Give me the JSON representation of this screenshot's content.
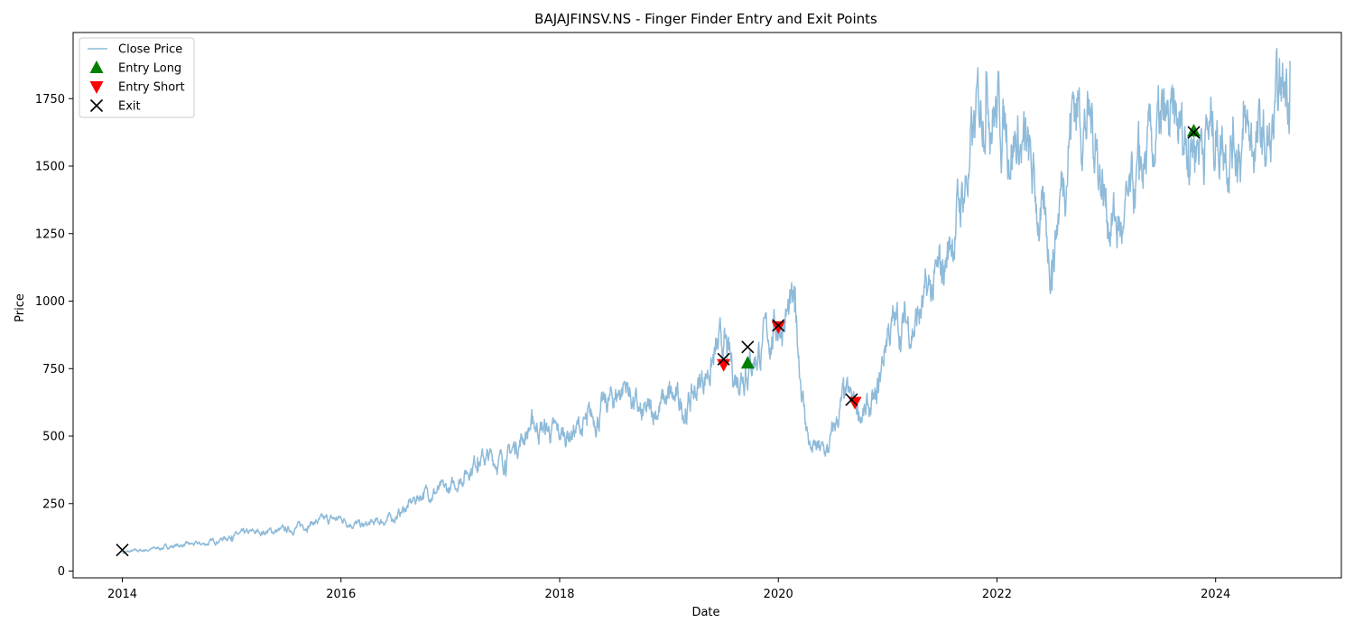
{
  "chart_data": {
    "type": "line",
    "title": "BAJAJFINSV.NS - Finger Finder Entry and Exit Points",
    "xlabel": "Date",
    "ylabel": "Price",
    "xlim": [
      2013.55,
      2025.15
    ],
    "ylim": [
      -25,
      1995
    ],
    "x_ticks": [
      2014,
      2016,
      2018,
      2020,
      2022,
      2024
    ],
    "x_tick_labels": [
      "2014",
      "2016",
      "2018",
      "2020",
      "2022",
      "2024"
    ],
    "y_ticks": [
      0,
      250,
      500,
      750,
      1000,
      1250,
      1500,
      1750
    ],
    "y_tick_labels": [
      "0",
      "250",
      "500",
      "750",
      "1000",
      "1250",
      "1500",
      "1750"
    ],
    "grid": false,
    "legend_position": "top-left",
    "legend": [
      {
        "label": "Close Price",
        "symbol": "line",
        "color": "#1f77b4"
      },
      {
        "label": "Entry Long",
        "symbol": "triangle-up",
        "color": "#008000"
      },
      {
        "label": "Entry Short",
        "symbol": "triangle-down",
        "color": "#ff0000"
      },
      {
        "label": "Exit",
        "symbol": "x",
        "color": "#000000"
      }
    ],
    "series": [
      {
        "name": "Close Price",
        "color": "#1f77b4",
        "opacity": 0.5,
        "points": [
          [
            2014.0,
            68
          ],
          [
            2014.25,
            80
          ],
          [
            2014.5,
            95
          ],
          [
            2014.75,
            100
          ],
          [
            2015.0,
            130
          ],
          [
            2015.25,
            145
          ],
          [
            2015.5,
            150
          ],
          [
            2015.75,
            180
          ],
          [
            2016.0,
            195
          ],
          [
            2016.2,
            165
          ],
          [
            2016.5,
            200
          ],
          [
            2016.75,
            290
          ],
          [
            2017.0,
            300
          ],
          [
            2017.25,
            420
          ],
          [
            2017.5,
            410
          ],
          [
            2017.75,
            545
          ],
          [
            2018.0,
            500
          ],
          [
            2018.25,
            540
          ],
          [
            2018.5,
            640
          ],
          [
            2018.6,
            700
          ],
          [
            2018.75,
            560
          ],
          [
            2019.0,
            640
          ],
          [
            2019.15,
            600
          ],
          [
            2019.4,
            780
          ],
          [
            2019.5,
            830
          ],
          [
            2019.6,
            720
          ],
          [
            2019.7,
            760
          ],
          [
            2019.85,
            830
          ],
          [
            2020.0,
            920
          ],
          [
            2020.15,
            960
          ],
          [
            2020.25,
            550
          ],
          [
            2020.3,
            450
          ],
          [
            2020.45,
            440
          ],
          [
            2020.6,
            640
          ],
          [
            2020.8,
            580
          ],
          [
            2020.9,
            620
          ],
          [
            2021.0,
            900
          ],
          [
            2021.25,
            920
          ],
          [
            2021.5,
            1100
          ],
          [
            2021.75,
            1500
          ],
          [
            2021.9,
            1850
          ],
          [
            2022.0,
            1700
          ],
          [
            2022.25,
            1560
          ],
          [
            2022.4,
            1300
          ],
          [
            2022.5,
            1150
          ],
          [
            2022.7,
            1750
          ],
          [
            2022.9,
            1620
          ],
          [
            2023.0,
            1350
          ],
          [
            2023.15,
            1250
          ],
          [
            2023.3,
            1450
          ],
          [
            2023.5,
            1620
          ],
          [
            2023.75,
            1610
          ],
          [
            2024.0,
            1630
          ],
          [
            2024.25,
            1600
          ],
          [
            2024.5,
            1560
          ],
          [
            2024.68,
            1890
          ]
        ]
      }
    ],
    "markers": {
      "entry_long": [
        [
          2019.72,
          770
        ],
        [
          2023.8,
          1630
        ]
      ],
      "entry_short": [
        [
          2019.5,
          765
        ],
        [
          2020.0,
          905
        ],
        [
          2020.7,
          625
        ]
      ],
      "exit": [
        [
          2014.0,
          78
        ],
        [
          2019.5,
          785
        ],
        [
          2019.72,
          830
        ],
        [
          2020.0,
          910
        ],
        [
          2020.67,
          635
        ],
        [
          2023.8,
          1625
        ]
      ]
    }
  }
}
